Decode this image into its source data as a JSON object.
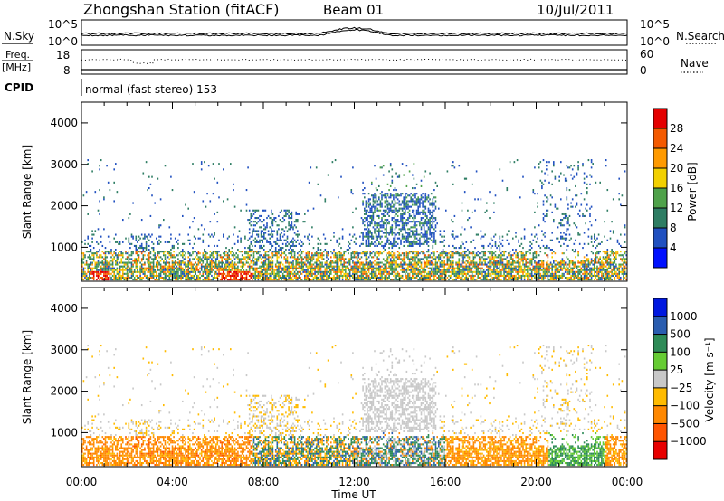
{
  "header": {
    "title": "Zhongshan Station (fitACF)",
    "beam": "Beam 01",
    "date": "10/Jul/2011",
    "mode": "normal (fast stereo) 153"
  },
  "strips": {
    "nsky": {
      "label": "N.Sky",
      "left_ticks": [
        "10^5",
        "10^0"
      ],
      "right_ticks": [
        "10^5",
        "10^0"
      ],
      "right_label": "N.Search"
    },
    "freq": {
      "label_line1": "Freq.",
      "label_line2": "[MHz]",
      "left_ticks": [
        "18",
        "8"
      ],
      "right_ticks": [
        "60",
        "0"
      ],
      "right_label": "Nave"
    },
    "cpid": {
      "label": "CPID"
    }
  },
  "axes": {
    "ylabel": "Slant Range [km]",
    "xlabel": "Time UT",
    "yticks": [
      "1000",
      "2000",
      "3000",
      "4000"
    ],
    "xticks": [
      "00:00",
      "04:00",
      "08:00",
      "12:00",
      "16:00",
      "20:00",
      "00:00"
    ]
  },
  "power_scale": {
    "label": "Power [dB]",
    "ticks": [
      "4",
      "8",
      "12",
      "16",
      "20",
      "24",
      "28"
    ],
    "colors": [
      "#0010ff",
      "#2050c0",
      "#2e7d63",
      "#4fa24a",
      "#f2d000",
      "#ff9a00",
      "#f45a00",
      "#e40000"
    ]
  },
  "velocity_scale": {
    "label": "Velocity [m s⁻¹]",
    "ticks": [
      "1000",
      "500",
      "100",
      "25",
      "−25",
      "−100",
      "−500",
      "−1000"
    ],
    "colors": [
      "#0018e0",
      "#2a5db0",
      "#2e8b57",
      "#66cc33",
      "#c8c8c8",
      "#ffbb00",
      "#ff8800",
      "#ff5500",
      "#e80000"
    ]
  },
  "chart_data": [
    {
      "type": "heatmap",
      "name": "Power",
      "x_range_hours": [
        0,
        24
      ],
      "y_range_km": [
        180,
        4500
      ],
      "description_bands": [
        {
          "t0": 0,
          "t1": 23.9,
          "r0": 200,
          "r1": 900,
          "dominant": "green/orange"
        },
        {
          "t0": 12.5,
          "t1": 15.5,
          "r0": 1000,
          "r1": 2300,
          "dominant": "blue/green"
        }
      ]
    },
    {
      "type": "heatmap",
      "name": "Velocity",
      "x_range_hours": [
        0,
        24
      ],
      "y_range_km": [
        180,
        4500
      ],
      "description_bands": [
        {
          "t0": 0,
          "t1": 7.5,
          "r0": 200,
          "r1": 900,
          "dominant": "orange"
        },
        {
          "t0": 12.5,
          "t1": 15.5,
          "r0": 1000,
          "r1": 2300,
          "dominant": "gray"
        }
      ]
    }
  ]
}
